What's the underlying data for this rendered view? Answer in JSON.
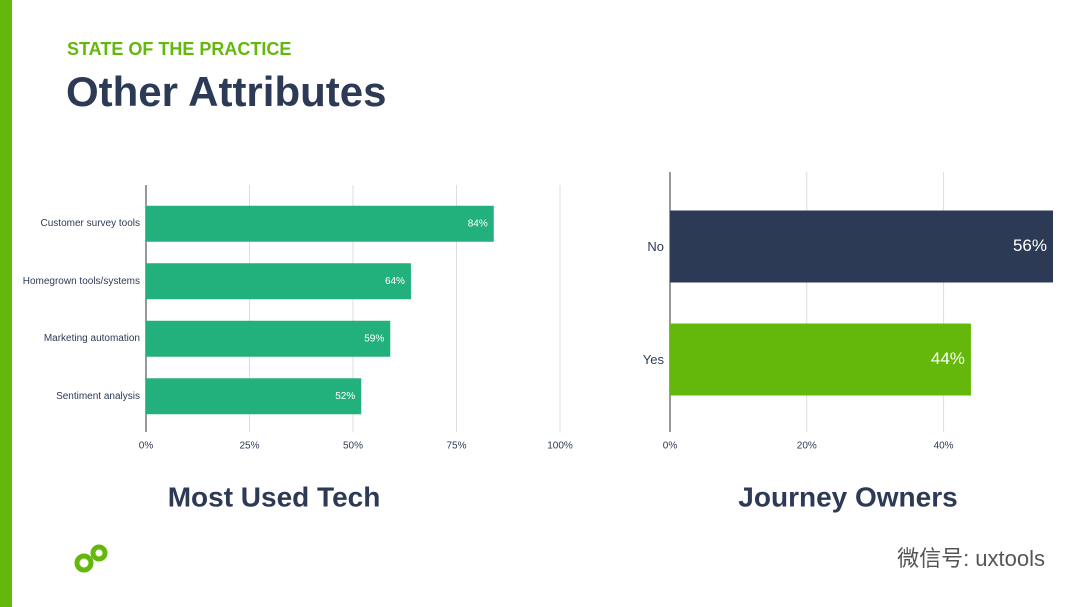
{
  "header": {
    "kicker": "STATE OF THE PRACTICE",
    "title": "Other Attributes"
  },
  "chart_data": [
    {
      "type": "hbar",
      "title": "Most Used Tech",
      "categories": [
        "Customer survey tools",
        "Homegrown tools/systems",
        "Marketing automation",
        "Sentiment analysis"
      ],
      "values": [
        84,
        64,
        59,
        52
      ],
      "value_labels": [
        "84%",
        "64%",
        "59%",
        "52%"
      ],
      "color": "#22b07d",
      "xlim": [
        0,
        100
      ],
      "xticks": [
        {
          "value": 0,
          "label": "0%"
        },
        {
          "value": 25,
          "label": "25%"
        },
        {
          "value": 50,
          "label": "50%"
        },
        {
          "value": 75,
          "label": "75%"
        },
        {
          "value": 100,
          "label": "100%"
        }
      ],
      "grid": true
    },
    {
      "type": "hbar",
      "title": "Journey Owners",
      "categories": [
        "No",
        "Yes"
      ],
      "values": [
        56,
        44
      ],
      "value_labels": [
        "56%",
        "44%"
      ],
      "colors": [
        "#2d3a56",
        "#64b80b"
      ],
      "xlim": [
        0,
        56
      ],
      "xticks": [
        {
          "value": 0,
          "label": "0%"
        },
        {
          "value": 20,
          "label": "20%"
        },
        {
          "value": 40,
          "label": "40%"
        }
      ],
      "grid": true
    }
  ],
  "watermark": "微信号: uxtools"
}
